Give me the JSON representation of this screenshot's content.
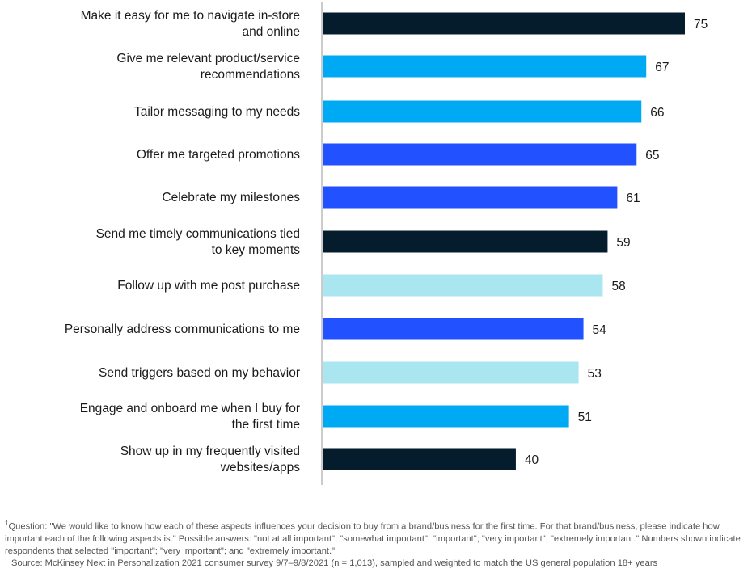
{
  "chart_data": {
    "type": "bar",
    "orientation": "horizontal",
    "categories": [
      [
        "Make it easy for me to navigate in-store",
        "and online"
      ],
      [
        "Give me relevant product/service",
        "recommendations"
      ],
      [
        "Tailor messaging to my needs"
      ],
      [
        "Offer me targeted promotions"
      ],
      [
        "Celebrate my milestones"
      ],
      [
        "Send me timely communications tied",
        "to key moments"
      ],
      [
        "Follow up with me post purchase"
      ],
      [
        "Personally address communications to me"
      ],
      [
        "Send triggers based on my behavior"
      ],
      [
        "Engage and onboard me when I buy for",
        "the first time"
      ],
      [
        "Show up in my frequently visited",
        "websites/apps"
      ]
    ],
    "values": [
      75,
      67,
      66,
      65,
      61,
      59,
      58,
      54,
      53,
      51,
      40
    ],
    "bar_colors": [
      "#051c2c",
      "#00a9f4",
      "#00a9f4",
      "#2251ff",
      "#2251ff",
      "#051c2c",
      "#aae6f0",
      "#2251ff",
      "#aae6f0",
      "#00a9f4",
      "#051c2c"
    ],
    "xlim": [
      0,
      75
    ],
    "grid": false,
    "legend": "none"
  },
  "footnote": {
    "marker": "1",
    "question": "Question: \"We would like to know how each of these aspects influences your decision to buy from a brand/business for the first time. For that brand/business, please indicate how important each of the following aspects is.\" Possible answers: \"not at all important\"; \"somewhat important\"; \"important\"; \"very important\"; \"extremely important.\" Numbers shown indicate respondents that selected \"important\"; \"very important\"; and \"extremely important.\"",
    "source": "Source: McKinsey Next in Personalization 2021 consumer survey 9/7–9/8/2021 (n = 1,013), sampled and weighted to match the US general population 18+ years"
  }
}
